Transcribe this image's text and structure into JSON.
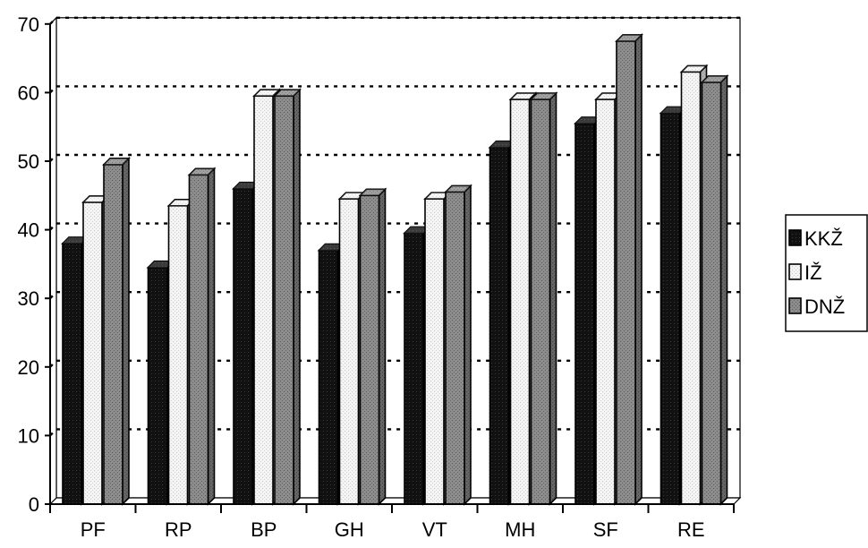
{
  "chart_data": {
    "type": "bar",
    "categories": [
      "PF",
      "RP",
      "BP",
      "GH",
      "VT",
      "MH",
      "SF",
      "RE"
    ],
    "series": [
      {
        "name": "KKŽ",
        "values": [
          38,
          34.5,
          46,
          37,
          39.5,
          52,
          55.5,
          57
        ],
        "color": "#111111",
        "pattern": "dots-dark"
      },
      {
        "name": "IŽ",
        "values": [
          44,
          43.5,
          59.5,
          44.5,
          44.5,
          59,
          59,
          63
        ],
        "color": "#eeeeee",
        "pattern": "dots-light"
      },
      {
        "name": "DNŽ",
        "values": [
          49.5,
          48,
          59.5,
          45,
          45.5,
          59,
          67.5,
          61.5
        ],
        "color": "#808080",
        "pattern": "dots-mid"
      }
    ],
    "title": "",
    "xlabel": "",
    "ylabel": "",
    "ylim": [
      0,
      70
    ],
    "yticks": [
      "0",
      "10",
      "20",
      "30",
      "40",
      "50",
      "60",
      "70"
    ],
    "grid": "dotted horizontal",
    "legend_position": "right"
  }
}
